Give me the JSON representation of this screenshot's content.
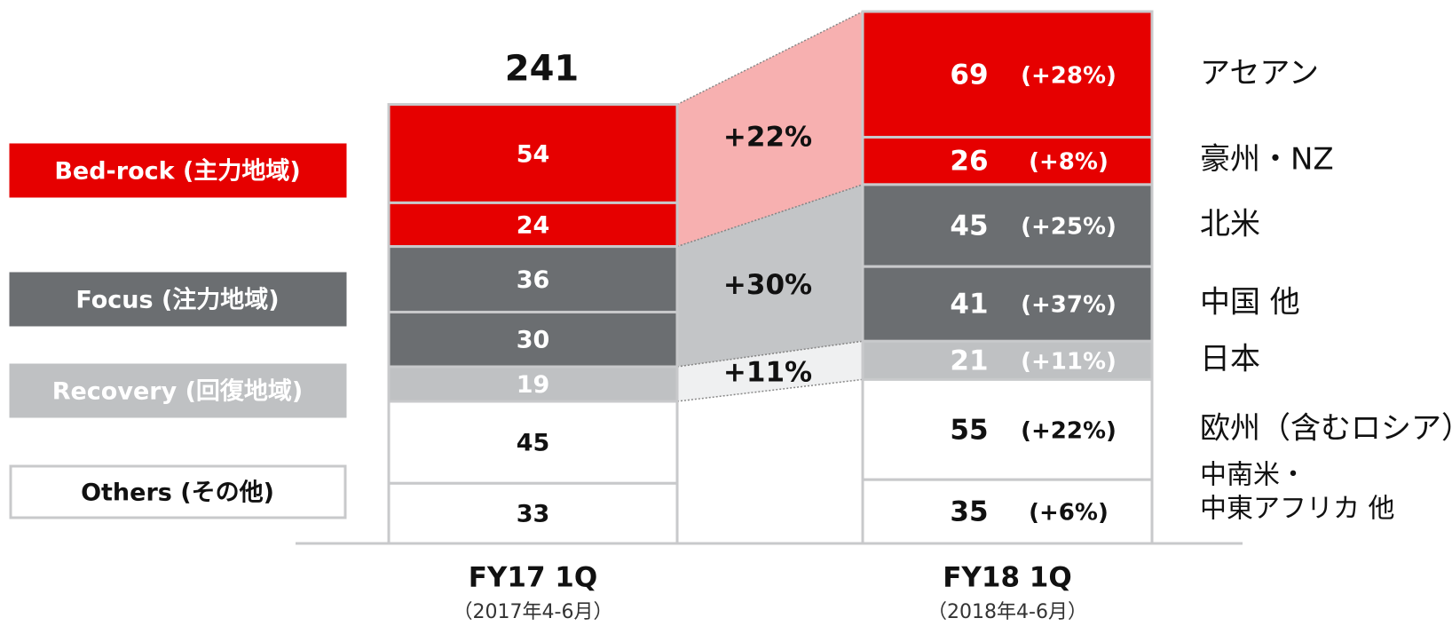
{
  "chart_data": {
    "type": "stacked-bar",
    "categories": [
      "FY17 1Q",
      "FY18 1Q"
    ],
    "category_notes": [
      "（2017年4-6月）",
      "（2018年4-6月）"
    ],
    "totals": [
      241,
      null
    ],
    "groups": [
      {
        "name": "Bed-rock (主力地域)",
        "color": "#e60000",
        "connector_color": "#f7b0b0",
        "label_color": "#ffffff",
        "growth": "+22%"
      },
      {
        "name": "Focus (注力地域)",
        "color": "#6b6e71",
        "connector_color": "#c3c5c7",
        "label_color": "#ffffff",
        "growth": "+30%"
      },
      {
        "name": "Recovery (回復地域)",
        "color": "#bfc1c3",
        "connector_color": "#eff0f1",
        "label_color": "#ffffff",
        "growth": "+11%"
      },
      {
        "name": "Others (その他)",
        "color": "#ffffff",
        "label_color": "#111111"
      }
    ],
    "series": [
      {
        "name": "アセアン",
        "group": 0,
        "values": [
          54,
          69
        ],
        "change": "(+28%)"
      },
      {
        "name": "豪州・NZ",
        "group": 0,
        "values": [
          24,
          26
        ],
        "change": "(+8%)"
      },
      {
        "name": "北米",
        "group": 1,
        "values": [
          36,
          45
        ],
        "change": "(+25%)"
      },
      {
        "name": "中国 他",
        "group": 1,
        "values": [
          30,
          41
        ],
        "change": "(+37%)"
      },
      {
        "name": "日本",
        "group": 2,
        "values": [
          19,
          21
        ],
        "change": "(+11%)"
      },
      {
        "name": "欧州（含むロシア）",
        "group": 3,
        "values": [
          45,
          55
        ],
        "change": "(+22%)"
      },
      {
        "name": [
          "中南米・",
          "中東アフリカ 他"
        ],
        "group": 3,
        "values": [
          33,
          35
        ],
        "change": "(+6%)"
      }
    ]
  }
}
